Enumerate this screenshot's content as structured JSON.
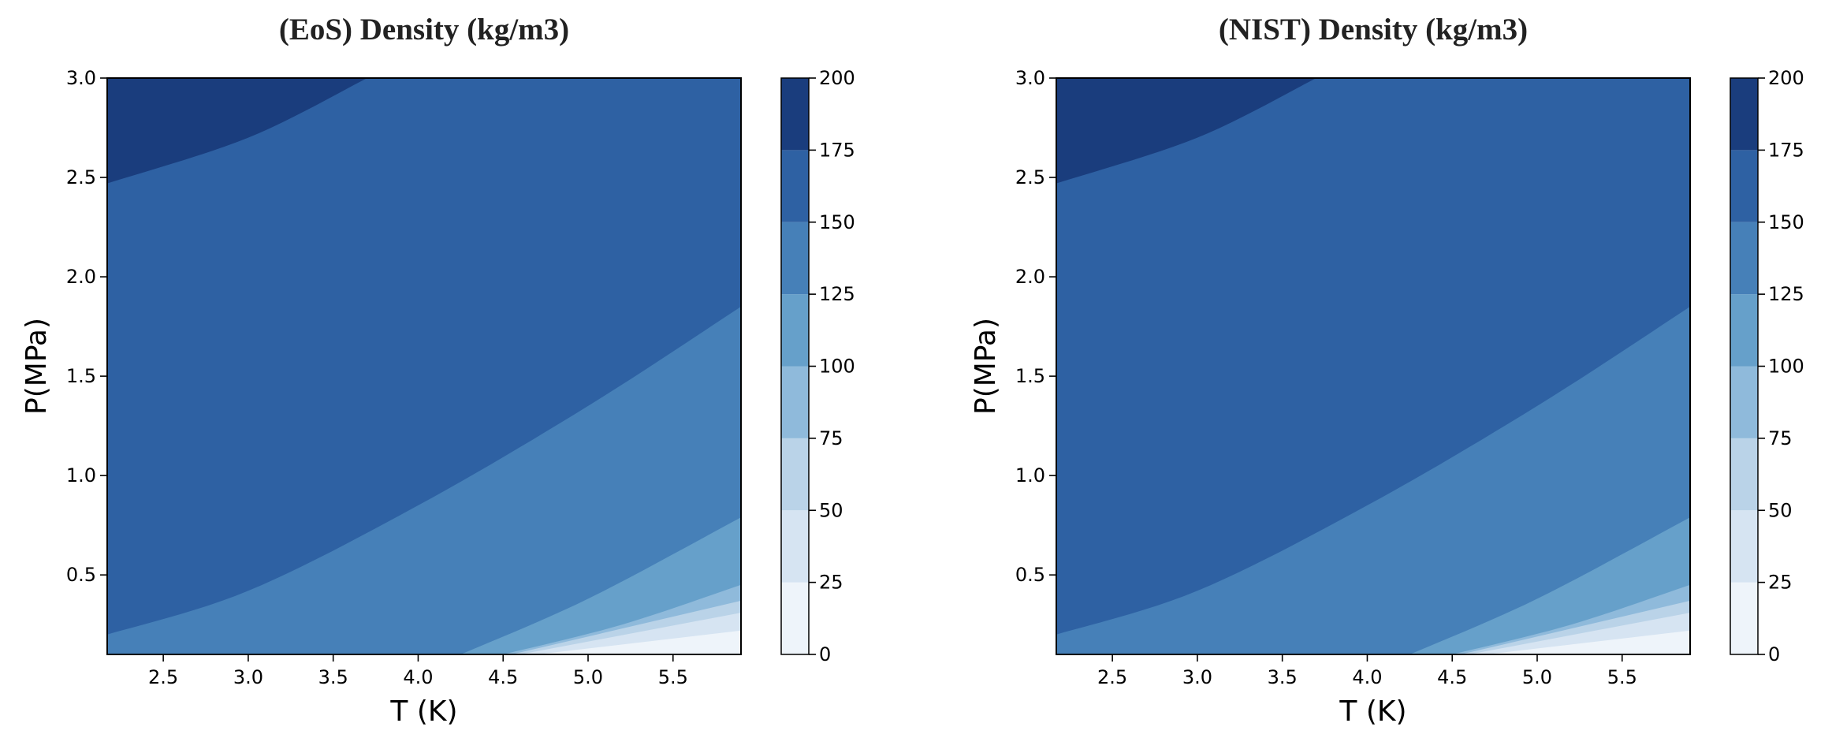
{
  "chart_data": [
    {
      "type": "contour",
      "title": "(EoS) Density (kg/m3)",
      "xlabel": "T (K)",
      "ylabel": "P(MPa)",
      "xlim": [
        2.17,
        5.9
      ],
      "ylim": [
        0.1,
        3.0
      ],
      "xticks": [
        "2.5",
        "3.0",
        "3.5",
        "4.0",
        "4.5",
        "5.0",
        "5.5"
      ],
      "yticks": [
        "0.5",
        "1.0",
        "1.5",
        "2.0",
        "2.5",
        "3.0"
      ],
      "colorbar": {
        "levels": [
          0,
          25,
          50,
          75,
          100,
          125,
          150,
          175,
          200
        ],
        "ticks": [
          "0",
          "25",
          "50",
          "75",
          "100",
          "125",
          "150",
          "175",
          "200"
        ],
        "colors": [
          "#eef4fa",
          "#d6e4f2",
          "#bad3e8",
          "#8fbadb",
          "#66a0ca",
          "#4680b8",
          "#2e61a3",
          "#1a3d7d"
        ]
      },
      "level_boundaries": [
        {
          "level": 175,
          "points": [
            [
              2.17,
              2.47
            ],
            [
              3.0,
              2.7
            ],
            [
              3.7,
              3.0
            ]
          ]
        },
        {
          "level": 150,
          "points": [
            [
              2.17,
              0.2
            ],
            [
              3.0,
              0.42
            ],
            [
              4.0,
              0.85
            ],
            [
              5.0,
              1.35
            ],
            [
              5.9,
              1.85
            ]
          ]
        },
        {
          "level": 125,
          "points": [
            [
              4.25,
              0.1
            ],
            [
              5.0,
              0.38
            ],
            [
              5.9,
              0.79
            ]
          ]
        },
        {
          "level": 100,
          "points": [
            [
              4.5,
              0.1
            ],
            [
              5.2,
              0.25
            ],
            [
              5.9,
              0.45
            ]
          ]
        },
        {
          "level": 75,
          "points": [
            [
              4.55,
              0.1
            ],
            [
              5.9,
              0.37
            ]
          ]
        },
        {
          "level": 50,
          "points": [
            [
              4.6,
              0.1
            ],
            [
              5.9,
              0.31
            ]
          ]
        },
        {
          "level": 25,
          "points": [
            [
              4.7,
              0.1
            ],
            [
              5.9,
              0.22
            ]
          ]
        }
      ]
    },
    {
      "type": "contour",
      "title": "(NIST) Density (kg/m3)",
      "xlabel": "T (K)",
      "ylabel": "P(MPa)",
      "xlim": [
        2.17,
        5.9
      ],
      "ylim": [
        0.1,
        3.0
      ],
      "xticks": [
        "2.5",
        "3.0",
        "3.5",
        "4.0",
        "4.5",
        "5.0",
        "5.5"
      ],
      "yticks": [
        "0.5",
        "1.0",
        "1.5",
        "2.0",
        "2.5",
        "3.0"
      ],
      "colorbar": {
        "levels": [
          0,
          25,
          50,
          75,
          100,
          125,
          150,
          175,
          200
        ],
        "ticks": [
          "0",
          "25",
          "50",
          "75",
          "100",
          "125",
          "150",
          "175",
          "200"
        ],
        "colors": [
          "#eef4fa",
          "#d6e4f2",
          "#bad3e8",
          "#8fbadb",
          "#66a0ca",
          "#4680b8",
          "#2e61a3",
          "#1a3d7d"
        ]
      },
      "level_boundaries": [
        {
          "level": 175,
          "points": [
            [
              2.17,
              2.47
            ],
            [
              3.0,
              2.7
            ],
            [
              3.7,
              3.0
            ]
          ]
        },
        {
          "level": 150,
          "points": [
            [
              2.17,
              0.2
            ],
            [
              3.0,
              0.42
            ],
            [
              4.0,
              0.85
            ],
            [
              5.0,
              1.35
            ],
            [
              5.9,
              1.85
            ]
          ]
        },
        {
          "level": 125,
          "points": [
            [
              4.25,
              0.1
            ],
            [
              5.0,
              0.38
            ],
            [
              5.9,
              0.79
            ]
          ]
        },
        {
          "level": 100,
          "points": [
            [
              4.5,
              0.1
            ],
            [
              5.2,
              0.25
            ],
            [
              5.9,
              0.45
            ]
          ]
        },
        {
          "level": 75,
          "points": [
            [
              4.55,
              0.1
            ],
            [
              5.9,
              0.37
            ]
          ]
        },
        {
          "level": 50,
          "points": [
            [
              4.6,
              0.1
            ],
            [
              5.9,
              0.31
            ]
          ]
        },
        {
          "level": 25,
          "points": [
            [
              4.7,
              0.1
            ],
            [
              5.9,
              0.22
            ]
          ]
        }
      ]
    }
  ]
}
